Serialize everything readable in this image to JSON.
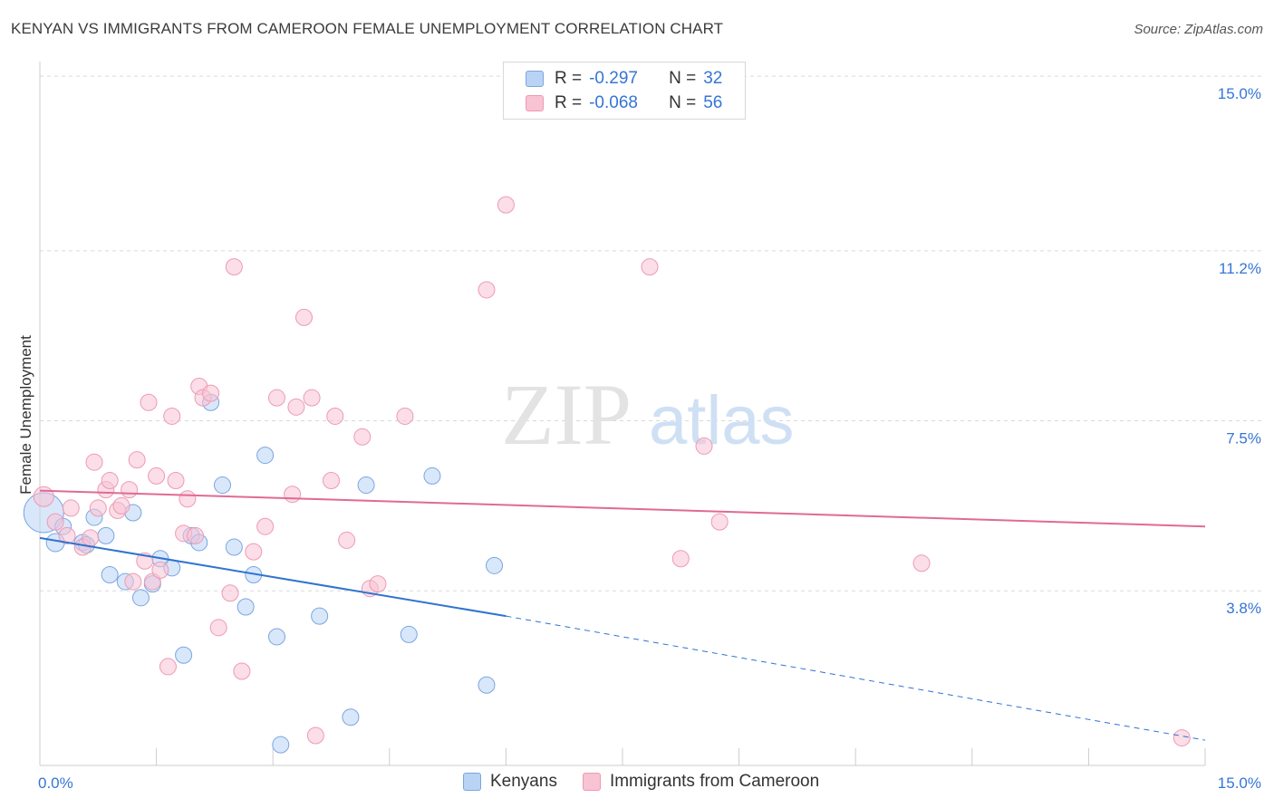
{
  "title": "KENYAN VS IMMIGRANTS FROM CAMEROON FEMALE UNEMPLOYMENT CORRELATION CHART",
  "source": "Source: ZipAtlas.com",
  "watermark": {
    "zip": "ZIP",
    "atlas": "atlas"
  },
  "colors": {
    "blue_fill": "#b9d3f5",
    "blue_stroke": "#7aa6e0",
    "blue_line": "#2f73d0",
    "pink_fill": "#f8c3d3",
    "pink_stroke": "#ee9ab4",
    "pink_line": "#e06a95",
    "tick_label": "#3575d6",
    "grid": "#d9d9d9"
  },
  "legend": {
    "rows": [
      {
        "r_label": "R =",
        "r_value": "-0.297",
        "n_label": "N =",
        "n_value": "32",
        "color": "blue"
      },
      {
        "r_label": "R =",
        "r_value": "-0.068",
        "n_label": "N =",
        "n_value": "56",
        "color": "pink"
      }
    ]
  },
  "bottom_legend": [
    "Kenyans",
    "Immigrants from Cameroon"
  ],
  "chart_data": {
    "type": "scatter",
    "title": "KENYAN VS IMMIGRANTS FROM CAMEROON FEMALE UNEMPLOYMENT CORRELATION CHART",
    "xlabel": "",
    "ylabel": "Female Unemployment",
    "xlim": [
      0,
      15
    ],
    "ylim": [
      0,
      15
    ],
    "x_tick_labels": [
      "0.0%",
      "15.0%"
    ],
    "y_ticks": [
      3.8,
      7.5,
      11.2,
      15.0
    ],
    "y_tick_labels": [
      "3.8%",
      "7.5%",
      "11.2%",
      "15.0%"
    ],
    "grid": true,
    "legend_position": "top-center",
    "series": [
      {
        "name": "Kenyans",
        "color": "blue",
        "trend": {
          "x": [
            0,
            6.0
          ],
          "y": [
            4.95,
            3.25
          ],
          "dashed_to": [
            15.0,
            0.55
          ]
        },
        "points": [
          [
            0.05,
            5.5,
            22
          ],
          [
            0.2,
            4.85,
            10
          ],
          [
            0.3,
            5.2,
            9
          ],
          [
            0.55,
            4.85,
            9
          ],
          [
            0.7,
            5.4,
            9
          ],
          [
            0.85,
            5.0,
            9
          ],
          [
            0.9,
            4.15,
            9
          ],
          [
            1.1,
            4.0,
            9
          ],
          [
            1.2,
            5.5,
            9
          ],
          [
            1.3,
            3.65,
            9
          ],
          [
            1.45,
            3.95,
            9
          ],
          [
            1.55,
            4.5,
            9
          ],
          [
            1.7,
            4.3,
            9
          ],
          [
            1.85,
            2.4,
            9
          ],
          [
            1.95,
            5.0,
            9
          ],
          [
            2.05,
            4.85,
            9
          ],
          [
            2.2,
            7.9,
            9
          ],
          [
            2.35,
            6.1,
            9
          ],
          [
            2.5,
            4.75,
            9
          ],
          [
            2.65,
            3.45,
            9
          ],
          [
            2.75,
            4.15,
            9
          ],
          [
            2.9,
            6.75,
            9
          ],
          [
            3.05,
            2.8,
            9
          ],
          [
            3.1,
            0.45,
            9
          ],
          [
            3.6,
            3.25,
            9
          ],
          [
            4.0,
            1.05,
            9
          ],
          [
            4.2,
            6.1,
            9
          ],
          [
            4.75,
            2.85,
            9
          ],
          [
            5.05,
            6.3,
            9
          ],
          [
            5.75,
            1.75,
            9
          ],
          [
            5.85,
            4.35,
            9
          ],
          [
            0.6,
            4.8,
            9
          ]
        ]
      },
      {
        "name": "Immigrants from Cameroon",
        "color": "pink",
        "trend": {
          "x": [
            0,
            15.0
          ],
          "y": [
            5.98,
            5.2
          ]
        },
        "points": [
          [
            0.05,
            5.85,
            11
          ],
          [
            0.2,
            5.3,
            9
          ],
          [
            0.35,
            5.0,
            9
          ],
          [
            0.4,
            5.6,
            9
          ],
          [
            0.55,
            4.75,
            9
          ],
          [
            0.65,
            4.95,
            9
          ],
          [
            0.7,
            6.6,
            9
          ],
          [
            0.75,
            5.6,
            9
          ],
          [
            0.85,
            6.0,
            9
          ],
          [
            0.9,
            6.2,
            9
          ],
          [
            1.0,
            5.55,
            9
          ],
          [
            1.05,
            5.65,
            9
          ],
          [
            1.15,
            6.0,
            9
          ],
          [
            1.25,
            6.65,
            9
          ],
          [
            1.35,
            4.45,
            9
          ],
          [
            1.4,
            7.9,
            9
          ],
          [
            1.45,
            4.0,
            9
          ],
          [
            1.5,
            6.3,
            9
          ],
          [
            1.55,
            4.25,
            9
          ],
          [
            1.65,
            2.15,
            9
          ],
          [
            1.7,
            7.6,
            9
          ],
          [
            1.75,
            6.2,
            9
          ],
          [
            1.85,
            5.05,
            9
          ],
          [
            1.9,
            5.8,
            9
          ],
          [
            2.0,
            5.0,
            9
          ],
          [
            2.05,
            8.25,
            9
          ],
          [
            2.1,
            8.0,
            9
          ],
          [
            2.2,
            8.1,
            9
          ],
          [
            2.3,
            3.0,
            9
          ],
          [
            2.45,
            3.75,
            9
          ],
          [
            2.5,
            10.85,
            9
          ],
          [
            2.6,
            2.05,
            9
          ],
          [
            2.75,
            4.65,
            9
          ],
          [
            2.9,
            5.2,
            9
          ],
          [
            3.05,
            8.0,
            9
          ],
          [
            3.25,
            5.9,
            9
          ],
          [
            3.3,
            7.8,
            9
          ],
          [
            3.4,
            9.75,
            9
          ],
          [
            3.5,
            8.0,
            9
          ],
          [
            3.55,
            0.65,
            9
          ],
          [
            3.75,
            6.2,
            9
          ],
          [
            3.8,
            7.6,
            9
          ],
          [
            3.95,
            4.9,
            9
          ],
          [
            4.15,
            7.15,
            9
          ],
          [
            4.25,
            3.85,
            9
          ],
          [
            4.35,
            3.95,
            9
          ],
          [
            4.7,
            7.6,
            9
          ],
          [
            5.75,
            10.35,
            9
          ],
          [
            6.0,
            12.2,
            9
          ],
          [
            7.85,
            10.85,
            9
          ],
          [
            8.25,
            4.5,
            9
          ],
          [
            8.55,
            6.95,
            9
          ],
          [
            8.75,
            5.3,
            9
          ],
          [
            11.35,
            4.4,
            9
          ],
          [
            14.7,
            0.6,
            9
          ],
          [
            1.2,
            4.0,
            9
          ]
        ]
      }
    ]
  }
}
